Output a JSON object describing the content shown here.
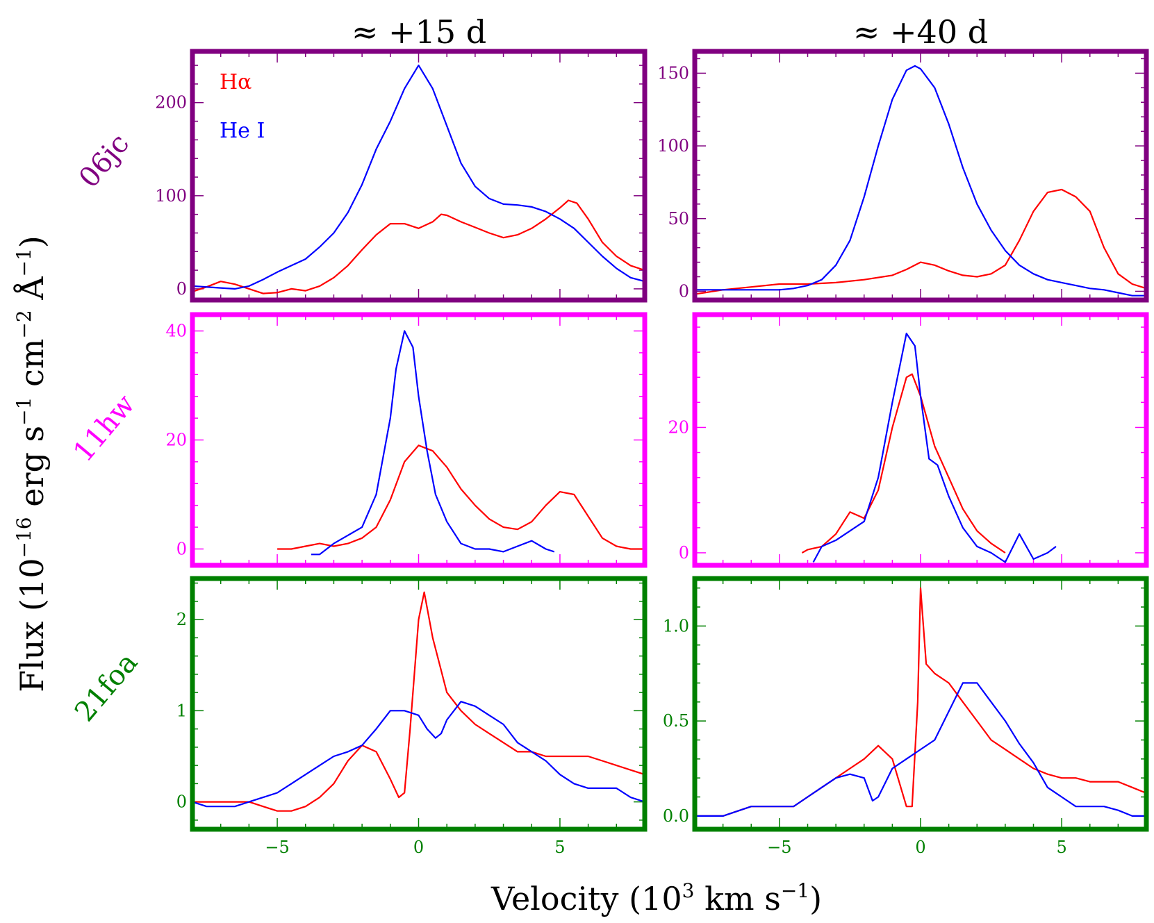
{
  "figure": {
    "columns": [
      "≈ +15 d",
      "≈ +40 d"
    ],
    "xlabel_main": "Velocity (10",
    "xlabel_sup1": "3",
    "xlabel_mid": " km s",
    "xlabel_sup2": "−1",
    "xlabel_end": ")",
    "ylabel_main": "Flux (10",
    "ylabel_sup1": "−16",
    "ylabel_mid1": " erg s",
    "ylabel_sup2": "−1",
    "ylabel_mid2": " cm",
    "ylabel_sup3": "−2",
    "ylabel_mid3": " Å",
    "ylabel_sup4": "−1",
    "ylabel_end": ")",
    "legend": [
      {
        "label": "Hα",
        "color": "#ff0000"
      },
      {
        "label": "He I",
        "color": "#0000ff"
      }
    ],
    "rows": [
      {
        "label": "06jc",
        "color": "#800080"
      },
      {
        "label": "11hw",
        "color": "#ff00ff"
      },
      {
        "label": "21foa",
        "color": "#008000"
      }
    ]
  },
  "chart_data": [
    {
      "type": "line",
      "row": "06jc",
      "column": "≈ +15 d",
      "xlim": [
        -8,
        8
      ],
      "ylim": [
        -12,
        255
      ],
      "xticks": [
        -5,
        0,
        5
      ],
      "yticks": [
        0,
        100,
        200
      ],
      "yticklabels": [
        "0",
        "100",
        "200"
      ],
      "series": [
        {
          "name": "Hα",
          "color": "#ff0000",
          "x": [
            -8,
            -7.5,
            -7,
            -6.5,
            -6,
            -5.5,
            -5,
            -4.5,
            -4,
            -3.5,
            -3,
            -2.5,
            -2,
            -1.5,
            -1,
            -0.5,
            0,
            0.5,
            0.8,
            1,
            1.5,
            2,
            2.5,
            3,
            3.5,
            4,
            4.5,
            5,
            5.3,
            5.6,
            6,
            6.5,
            7,
            7.5,
            8
          ],
          "y": [
            -3,
            2,
            8,
            5,
            0,
            -5,
            -4,
            0,
            -2,
            3,
            12,
            25,
            42,
            58,
            70,
            70,
            65,
            72,
            80,
            79,
            72,
            66,
            60,
            55,
            58,
            65,
            75,
            87,
            95,
            92,
            75,
            50,
            35,
            25,
            20
          ]
        },
        {
          "name": "He I",
          "color": "#0000ff",
          "x": [
            -8,
            -7,
            -6.5,
            -6,
            -5.5,
            -5,
            -4.5,
            -4,
            -3.5,
            -3,
            -2.5,
            -2,
            -1.5,
            -1,
            -0.5,
            0,
            0.5,
            1,
            1.5,
            2,
            2.5,
            3,
            3.5,
            4,
            4.5,
            5,
            5.5,
            6,
            6.5,
            7,
            7.5,
            8
          ],
          "y": [
            3,
            1,
            0,
            3,
            10,
            18,
            25,
            32,
            45,
            60,
            82,
            112,
            150,
            180,
            215,
            240,
            215,
            175,
            135,
            110,
            97,
            91,
            90,
            88,
            83,
            75,
            65,
            50,
            35,
            22,
            12,
            8
          ]
        }
      ]
    },
    {
      "type": "line",
      "row": "06jc",
      "column": "≈ +40 d",
      "xlim": [
        -8,
        8
      ],
      "ylim": [
        -6,
        165
      ],
      "xticks": [
        -5,
        0,
        5
      ],
      "yticks": [
        0,
        50,
        100,
        150
      ],
      "yticklabels": [
        "0",
        "50",
        "100",
        "150"
      ],
      "series": [
        {
          "name": "Hα",
          "color": "#ff0000",
          "x": [
            -8,
            -7,
            -6,
            -5,
            -4,
            -3,
            -2,
            -1,
            -0.5,
            0,
            0.5,
            1,
            1.5,
            2,
            2.5,
            3,
            3.5,
            4,
            4.5,
            5,
            5.5,
            6,
            6.5,
            7,
            7.5,
            8
          ],
          "y": [
            -2,
            1,
            3,
            5,
            5,
            6,
            8,
            11,
            15,
            20,
            18,
            14,
            11,
            10,
            12,
            18,
            35,
            55,
            68,
            70,
            65,
            55,
            30,
            12,
            5,
            2
          ]
        },
        {
          "name": "He I",
          "color": "#0000ff",
          "x": [
            -8,
            -7,
            -6,
            -5,
            -4.5,
            -4,
            -3.5,
            -3,
            -2.5,
            -2,
            -1.5,
            -1,
            -0.5,
            -0.2,
            0,
            0.5,
            1,
            1.5,
            2,
            2.5,
            3,
            3.5,
            4,
            4.5,
            5,
            5.5,
            6,
            6.5,
            7,
            7.5,
            8
          ],
          "y": [
            1,
            1,
            1,
            1,
            2,
            4,
            8,
            18,
            35,
            65,
            100,
            132,
            152,
            155,
            153,
            140,
            115,
            85,
            60,
            42,
            28,
            18,
            12,
            8,
            6,
            4,
            2,
            1,
            -1,
            -3,
            -3
          ]
        }
      ]
    },
    {
      "type": "line",
      "row": "11hw",
      "column": "≈ +15 d",
      "xlim": [
        -8,
        8
      ],
      "ylim": [
        -3,
        43
      ],
      "xticks": [
        -5,
        0,
        5
      ],
      "yticks": [
        0,
        20,
        40
      ],
      "yticklabels": [
        "0",
        "20",
        "40"
      ],
      "series": [
        {
          "name": "Hα",
          "color": "#ff0000",
          "x": [
            -5,
            -4.5,
            -4,
            -3.5,
            -3,
            -2.5,
            -2,
            -1.5,
            -1,
            -0.5,
            0,
            0.5,
            1,
            1.5,
            2,
            2.5,
            3,
            3.5,
            4,
            4.5,
            5,
            5.5,
            6,
            6.5,
            7,
            7.5,
            8
          ],
          "y": [
            0,
            0,
            0.5,
            1,
            0.5,
            1,
            2,
            4,
            9,
            16,
            19,
            18,
            15,
            11,
            8,
            5.5,
            4,
            3.6,
            5,
            8,
            10.5,
            10,
            6,
            2,
            0.5,
            0,
            0
          ]
        },
        {
          "name": "He I",
          "color": "#0000ff",
          "x": [
            -3.8,
            -3.5,
            -3,
            -2.5,
            -2,
            -1.5,
            -1,
            -0.8,
            -0.5,
            -0.2,
            0,
            0.3,
            0.6,
            1,
            1.5,
            2,
            2.5,
            3,
            3.5,
            4,
            4.5,
            4.8
          ],
          "y": [
            -1,
            -1,
            1,
            2.5,
            4,
            10,
            24,
            33,
            40,
            37,
            28,
            18,
            10,
            5,
            1,
            0,
            0,
            -0.5,
            0.5,
            1.5,
            0,
            -0.5
          ]
        }
      ]
    },
    {
      "type": "line",
      "row": "11hw",
      "column": "≈ +40 d",
      "xlim": [
        -8,
        8
      ],
      "ylim": [
        -2,
        38
      ],
      "xticks": [
        -5,
        0,
        5
      ],
      "yticks": [
        0,
        20
      ],
      "yticklabels": [
        "0",
        "20"
      ],
      "series": [
        {
          "name": "Hα",
          "color": "#ff0000",
          "x": [
            -4.2,
            -4,
            -3.5,
            -3,
            -2.5,
            -2,
            -1.5,
            -1,
            -0.5,
            -0.3,
            0,
            0.5,
            1,
            1.5,
            2,
            2.5,
            3
          ],
          "y": [
            0,
            0.5,
            1,
            3,
            6.5,
            5.5,
            10,
            20,
            28,
            28.5,
            25,
            17,
            12,
            7,
            3.5,
            1.5,
            0
          ]
        },
        {
          "name": "He I",
          "color": "#0000ff",
          "x": [
            -3.8,
            -3.5,
            -3,
            -2.5,
            -2,
            -1.5,
            -1,
            -0.5,
            -0.2,
            0,
            0.3,
            0.6,
            1,
            1.5,
            2,
            2.5,
            3,
            3.5,
            4,
            4.5,
            4.8
          ],
          "y": [
            -1.5,
            1,
            2,
            3.5,
            5,
            12,
            24,
            35,
            33,
            25,
            15,
            14,
            9,
            4,
            1,
            0,
            -1.5,
            3,
            -1,
            0,
            1
          ]
        }
      ]
    },
    {
      "type": "line",
      "row": "21foa",
      "column": "≈ +15 d",
      "xlim": [
        -8,
        8
      ],
      "ylim": [
        -0.3,
        2.45
      ],
      "xticks": [
        -5,
        0,
        5
      ],
      "yticks": [
        0,
        1,
        2
      ],
      "yticklabels": [
        "0",
        "1",
        "2"
      ],
      "series": [
        {
          "name": "Hα",
          "color": "#ff0000",
          "x": [
            -8,
            -7,
            -6.5,
            -6,
            -5.5,
            -5,
            -4.5,
            -4,
            -3.5,
            -3,
            -2.5,
            -2,
            -1.5,
            -1,
            -0.7,
            -0.5,
            -0.3,
            0,
            0.2,
            0.5,
            1,
            1.5,
            2,
            2.5,
            3,
            3.5,
            4,
            4.5,
            5,
            5.5,
            6,
            6.5,
            7,
            7.5,
            8
          ],
          "y": [
            0,
            0,
            0,
            0,
            -0.05,
            -0.1,
            -0.1,
            -0.05,
            0.05,
            0.2,
            0.45,
            0.62,
            0.55,
            0.25,
            0.05,
            0.1,
            0.8,
            2.0,
            2.3,
            1.8,
            1.2,
            1.0,
            0.85,
            0.75,
            0.65,
            0.55,
            0.55,
            0.5,
            0.5,
            0.5,
            0.5,
            0.45,
            0.4,
            0.35,
            0.3
          ]
        },
        {
          "name": "He I",
          "color": "#0000ff",
          "x": [
            -8,
            -7.5,
            -7,
            -6.5,
            -6,
            -5.5,
            -5,
            -4.5,
            -4,
            -3.5,
            -3,
            -2.5,
            -2,
            -1.5,
            -1,
            -0.5,
            0,
            0.3,
            0.6,
            0.8,
            1,
            1.5,
            2,
            2.5,
            3,
            3.5,
            4,
            4.5,
            5,
            5.5,
            6,
            6.5,
            7,
            7.5,
            8
          ],
          "y": [
            0,
            -0.05,
            -0.05,
            -0.05,
            0,
            0.05,
            0.1,
            0.2,
            0.3,
            0.4,
            0.5,
            0.55,
            0.62,
            0.8,
            1.0,
            1.0,
            0.95,
            0.8,
            0.7,
            0.75,
            0.9,
            1.1,
            1.05,
            0.95,
            0.85,
            0.65,
            0.55,
            0.45,
            0.3,
            0.2,
            0.15,
            0.15,
            0.15,
            0.05,
            0
          ]
        }
      ]
    },
    {
      "type": "line",
      "row": "21foa",
      "column": "≈ +40 d",
      "xlim": [
        -8,
        8
      ],
      "ylim": [
        -0.07,
        1.25
      ],
      "xticks": [
        -5,
        0,
        5
      ],
      "yticks": [
        0,
        0.5,
        1
      ],
      "yticklabels": [
        "0.0",
        "0.5",
        "1.0"
      ],
      "series": [
        {
          "name": "Hα",
          "color": "#ff0000",
          "x": [
            -8,
            -7,
            -6,
            -5,
            -4.5,
            -4,
            -3.5,
            -3,
            -2.5,
            -2,
            -1.5,
            -1,
            -0.8,
            -0.5,
            -0.3,
            -0.1,
            0,
            0.2,
            0.5,
            1,
            1.5,
            2,
            2.5,
            3,
            3.5,
            4,
            4.5,
            5,
            5.5,
            6,
            6.5,
            7,
            7.5,
            8
          ],
          "y": [
            0,
            0,
            0.05,
            0.05,
            0.05,
            0.1,
            0.15,
            0.2,
            0.25,
            0.3,
            0.37,
            0.3,
            0.2,
            0.05,
            0.05,
            0.6,
            1.2,
            0.8,
            0.75,
            0.7,
            0.6,
            0.5,
            0.4,
            0.35,
            0.3,
            0.25,
            0.22,
            0.2,
            0.2,
            0.18,
            0.18,
            0.18,
            0.15,
            0.12
          ]
        },
        {
          "name": "He I",
          "color": "#0000ff",
          "x": [
            -8,
            -7,
            -6,
            -5,
            -4.5,
            -4,
            -3.5,
            -3,
            -2.5,
            -2,
            -1.7,
            -1.5,
            -1,
            -0.5,
            0,
            0.5,
            1,
            1.5,
            2,
            2.5,
            3,
            3.5,
            4,
            4.5,
            5,
            5.5,
            6,
            6.5,
            7,
            7.5,
            8
          ],
          "y": [
            0,
            0,
            0.05,
            0.05,
            0.05,
            0.1,
            0.15,
            0.2,
            0.22,
            0.2,
            0.08,
            0.1,
            0.25,
            0.3,
            0.35,
            0.4,
            0.55,
            0.7,
            0.7,
            0.6,
            0.5,
            0.38,
            0.28,
            0.15,
            0.1,
            0.05,
            0.05,
            0.05,
            0.03,
            0,
            0
          ]
        }
      ]
    }
  ]
}
